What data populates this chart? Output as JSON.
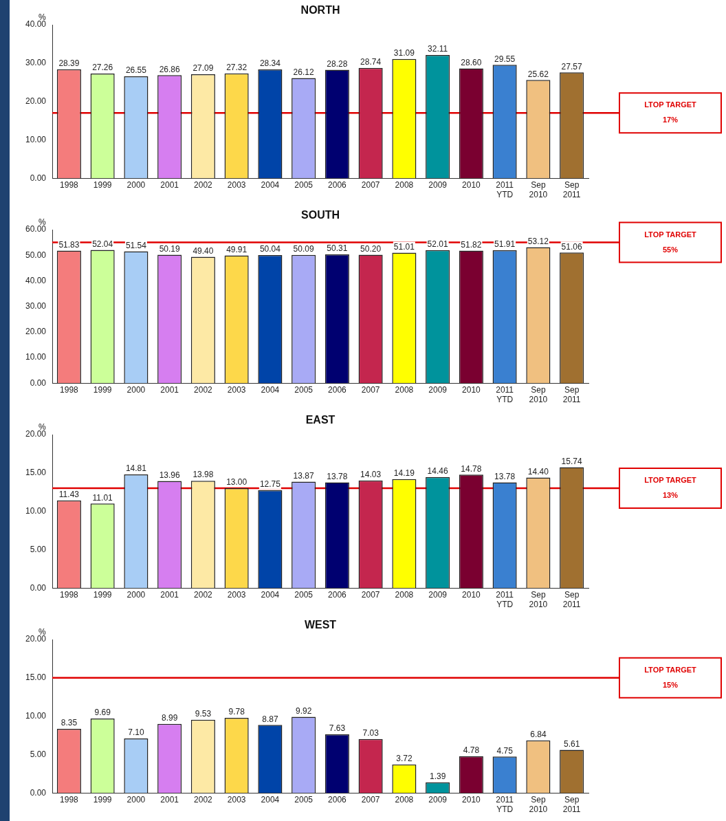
{
  "chart_data": [
    {
      "type": "bar",
      "title": "NORTH",
      "ylabel": "%",
      "categories": [
        "1998",
        "1999",
        "2000",
        "2001",
        "2002",
        "2003",
        "2004",
        "2005",
        "2006",
        "2007",
        "2008",
        "2009",
        "2010",
        "2011 YTD",
        "Sep 2010",
        "Sep 2011"
      ],
      "values": [
        28.39,
        27.26,
        26.55,
        26.86,
        27.09,
        27.32,
        28.34,
        26.12,
        28.28,
        28.74,
        31.09,
        32.11,
        28.6,
        29.55,
        25.62,
        27.57
      ],
      "value_labels": [
        "28.39",
        "27.26",
        "26.55",
        "26.86",
        "27.09",
        "27.32",
        "28.34",
        "26.12",
        "28.28",
        "28.74",
        "31.09",
        "32.11",
        "28.60",
        "29.55",
        "25.62",
        "27.57"
      ],
      "colors": [
        "#f47c7c",
        "#ccff99",
        "#a8cdf5",
        "#d67ef0",
        "#fde9a5",
        "#fdd84a",
        "#0044a8",
        "#a8aaf5",
        "#000070",
        "#c4264e",
        "#ffff00",
        "#00939c",
        "#7a0030",
        "#3a80d0",
        "#f0c080",
        "#a07030"
      ],
      "ylim": [
        0,
        40
      ],
      "yticks": [
        {
          "value": 0,
          "label": "0.00"
        },
        {
          "value": 10,
          "label": "10.00"
        },
        {
          "value": 20,
          "label": "20.00"
        },
        {
          "value": 30,
          "label": "30.00"
        },
        {
          "value": 40,
          "label": "40.00"
        }
      ],
      "ref_lines": [
        {
          "axis": "y",
          "value": 17,
          "label": "LTOP TARGET\n17%",
          "color": "#e00000"
        }
      ],
      "grid": false,
      "legend": false
    },
    {
      "type": "bar",
      "title": "SOUTH",
      "ylabel": "%",
      "categories": [
        "1998",
        "1999",
        "2000",
        "2001",
        "2002",
        "2003",
        "2004",
        "2005",
        "2006",
        "2007",
        "2008",
        "2009",
        "2010",
        "2011 YTD",
        "Sep 2010",
        "Sep 2011"
      ],
      "values": [
        51.83,
        52.04,
        51.54,
        50.19,
        49.4,
        49.91,
        50.04,
        50.09,
        50.31,
        50.2,
        51.01,
        52.01,
        51.82,
        51.91,
        53.12,
        51.06
      ],
      "value_labels": [
        "51.83",
        "52.04",
        "51.54",
        "50.19",
        "49.40",
        "49.91",
        "50.04",
        "50.09",
        "50.31",
        "50.20",
        "51.01",
        "52.01",
        "51.82",
        "51.91",
        "53.12",
        "51.06"
      ],
      "colors": [
        "#f47c7c",
        "#ccff99",
        "#a8cdf5",
        "#d67ef0",
        "#fde9a5",
        "#fdd84a",
        "#0044a8",
        "#a8aaf5",
        "#000070",
        "#c4264e",
        "#ffff00",
        "#00939c",
        "#7a0030",
        "#3a80d0",
        "#f0c080",
        "#a07030"
      ],
      "ylim": [
        0,
        60
      ],
      "yticks": [
        {
          "value": 0,
          "label": "0.00"
        },
        {
          "value": 10,
          "label": "10.00"
        },
        {
          "value": 20,
          "label": "20.00"
        },
        {
          "value": 30,
          "label": "30.00"
        },
        {
          "value": 40,
          "label": "40.00"
        },
        {
          "value": 50,
          "label": "50.00"
        },
        {
          "value": 60,
          "label": "60.00"
        }
      ],
      "ref_lines": [
        {
          "axis": "y",
          "value": 55,
          "label": "LTOP TARGET\n55%",
          "color": "#e00000"
        }
      ],
      "grid": false,
      "legend": false
    },
    {
      "type": "bar",
      "title": "EAST",
      "ylabel": "%",
      "categories": [
        "1998",
        "1999",
        "2000",
        "2001",
        "2002",
        "2003",
        "2004",
        "2005",
        "2006",
        "2007",
        "2008",
        "2009",
        "2010",
        "2011 YTD",
        "Sep 2010",
        "Sep 2011"
      ],
      "values": [
        11.43,
        11.01,
        14.81,
        13.96,
        13.98,
        13.0,
        12.75,
        13.87,
        13.78,
        14.03,
        14.19,
        14.46,
        14.78,
        13.78,
        14.4,
        15.74
      ],
      "value_labels": [
        "11.43",
        "11.01",
        "14.81",
        "13.96",
        "13.98",
        "13.00",
        "12.75",
        "13.87",
        "13.78",
        "14.03",
        "14.19",
        "14.46",
        "14.78",
        "13.78",
        "14.40",
        "15.74"
      ],
      "colors": [
        "#f47c7c",
        "#ccff99",
        "#a8cdf5",
        "#d67ef0",
        "#fde9a5",
        "#fdd84a",
        "#0044a8",
        "#a8aaf5",
        "#000070",
        "#c4264e",
        "#ffff00",
        "#00939c",
        "#7a0030",
        "#3a80d0",
        "#f0c080",
        "#a07030"
      ],
      "ylim": [
        0,
        20
      ],
      "yticks": [
        {
          "value": 0,
          "label": "0.00"
        },
        {
          "value": 5,
          "label": "5.00"
        },
        {
          "value": 10,
          "label": "10.00"
        },
        {
          "value": 15,
          "label": "15.00"
        },
        {
          "value": 20,
          "label": "20.00"
        }
      ],
      "ref_lines": [
        {
          "axis": "y",
          "value": 13,
          "label": "LTOP TARGET\n13%",
          "color": "#e00000"
        }
      ],
      "grid": false,
      "legend": false
    },
    {
      "type": "bar",
      "title": "WEST",
      "ylabel": "%",
      "categories": [
        "1998",
        "1999",
        "2000",
        "2001",
        "2002",
        "2003",
        "2004",
        "2005",
        "2006",
        "2007",
        "2008",
        "2009",
        "2010",
        "2011 YTD",
        "Sep 2010",
        "Sep 2011"
      ],
      "values": [
        8.35,
        9.69,
        7.1,
        8.99,
        9.53,
        9.78,
        8.87,
        9.92,
        7.63,
        7.03,
        3.72,
        1.39,
        4.78,
        4.75,
        6.84,
        5.61
      ],
      "value_labels": [
        "8.35",
        "9.69",
        "7.10",
        "8.99",
        "9.53",
        "9.78",
        "8.87",
        "9.92",
        "7.63",
        "7.03",
        "3.72",
        "1.39",
        "4.78",
        "4.75",
        "6.84",
        "5.61"
      ],
      "colors": [
        "#f47c7c",
        "#ccff99",
        "#a8cdf5",
        "#d67ef0",
        "#fde9a5",
        "#fdd84a",
        "#0044a8",
        "#a8aaf5",
        "#000070",
        "#c4264e",
        "#ffff00",
        "#00939c",
        "#7a0030",
        "#3a80d0",
        "#f0c080",
        "#a07030"
      ],
      "ylim": [
        0,
        20
      ],
      "yticks": [
        {
          "value": 0,
          "label": "0.00"
        },
        {
          "value": 5,
          "label": "5.00"
        },
        {
          "value": 10,
          "label": "10.00"
        },
        {
          "value": 15,
          "label": "15.00"
        },
        {
          "value": 20,
          "label": "20.00"
        }
      ],
      "ref_lines": [
        {
          "axis": "y",
          "value": 15,
          "label": "LTOP TARGET\n15%",
          "color": "#e00000"
        }
      ],
      "grid": false,
      "legend": false
    }
  ]
}
